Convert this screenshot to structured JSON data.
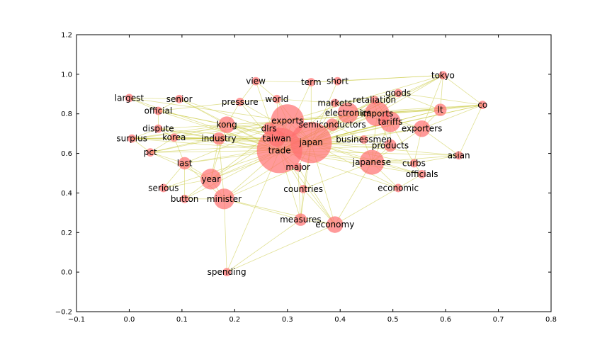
{
  "chart_data": {
    "type": "scatter",
    "subtype": "network-graph",
    "title": "",
    "xlabel": "",
    "ylabel": "",
    "xlim": [
      -0.1,
      0.8
    ],
    "ylim": [
      -0.2,
      1.2
    ],
    "xticks": [
      "-0.1",
      "0.0",
      "0.1",
      "0.2",
      "0.3",
      "0.4",
      "0.5",
      "0.6",
      "0.7",
      "0.8"
    ],
    "yticks": [
      "-0.2",
      "0.0",
      "0.2",
      "0.4",
      "0.6",
      "0.8",
      "1.0",
      "1.2"
    ],
    "grid": false,
    "node_color": "#ff6f6f",
    "edge_color": "#c8c83c",
    "nodes": [
      {
        "label": "trade",
        "x": 0.285,
        "y": 0.615,
        "weight": 10
      },
      {
        "label": "japan",
        "x": 0.345,
        "y": 0.655,
        "weight": 9
      },
      {
        "label": "exports",
        "x": 0.3,
        "y": 0.765,
        "weight": 7
      },
      {
        "label": "imports",
        "x": 0.47,
        "y": 0.8,
        "weight": 5
      },
      {
        "label": "japanese",
        "x": 0.46,
        "y": 0.555,
        "weight": 5
      },
      {
        "label": "electronics",
        "x": 0.415,
        "y": 0.805,
        "weight": 4
      },
      {
        "label": "tariffs",
        "x": 0.495,
        "y": 0.76,
        "weight": 4
      },
      {
        "label": "minister",
        "x": 0.18,
        "y": 0.37,
        "weight": 4
      },
      {
        "label": "year",
        "x": 0.155,
        "y": 0.47,
        "weight": 4
      },
      {
        "label": "kong",
        "x": 0.185,
        "y": 0.745,
        "weight": 3
      },
      {
        "label": "taiwan",
        "x": 0.28,
        "y": 0.675,
        "weight": 3
      },
      {
        "label": "exporters",
        "x": 0.555,
        "y": 0.725,
        "weight": 3
      },
      {
        "label": "economy",
        "x": 0.39,
        "y": 0.24,
        "weight": 3
      },
      {
        "label": "industry",
        "x": 0.17,
        "y": 0.675,
        "weight": 2
      },
      {
        "label": "dlrs",
        "x": 0.265,
        "y": 0.725,
        "weight": 2
      },
      {
        "label": "semiconductors",
        "x": 0.385,
        "y": 0.745,
        "weight": 2
      },
      {
        "label": "lt",
        "x": 0.59,
        "y": 0.82,
        "weight": 2
      },
      {
        "label": "products",
        "x": 0.495,
        "y": 0.64,
        "weight": 2
      },
      {
        "label": "measures",
        "x": 0.325,
        "y": 0.265,
        "weight": 2
      },
      {
        "label": "businessmen",
        "x": 0.445,
        "y": 0.67,
        "weight": 1
      },
      {
        "label": "retaliation",
        "x": 0.465,
        "y": 0.87,
        "weight": 1
      },
      {
        "label": "markets",
        "x": 0.39,
        "y": 0.855,
        "weight": 1
      },
      {
        "label": "goods",
        "x": 0.51,
        "y": 0.905,
        "weight": 1
      },
      {
        "label": "tokyo",
        "x": 0.595,
        "y": 0.995,
        "weight": 1
      },
      {
        "label": "co",
        "x": 0.67,
        "y": 0.845,
        "weight": 1
      },
      {
        "label": "term",
        "x": 0.345,
        "y": 0.96,
        "weight": 1
      },
      {
        "label": "short",
        "x": 0.395,
        "y": 0.965,
        "weight": 1
      },
      {
        "label": "view",
        "x": 0.24,
        "y": 0.965,
        "weight": 1
      },
      {
        "label": "world",
        "x": 0.28,
        "y": 0.875,
        "weight": 1
      },
      {
        "label": "pressure",
        "x": 0.21,
        "y": 0.86,
        "weight": 1
      },
      {
        "label": "largest",
        "x": 0.0,
        "y": 0.88,
        "weight": 1
      },
      {
        "label": "senior",
        "x": 0.095,
        "y": 0.875,
        "weight": 1
      },
      {
        "label": "official",
        "x": 0.055,
        "y": 0.815,
        "weight": 1
      },
      {
        "label": "dispute",
        "x": 0.055,
        "y": 0.725,
        "weight": 1
      },
      {
        "label": "korea",
        "x": 0.085,
        "y": 0.68,
        "weight": 1
      },
      {
        "label": "surplus",
        "x": 0.005,
        "y": 0.675,
        "weight": 1
      },
      {
        "label": "pct",
        "x": 0.04,
        "y": 0.605,
        "weight": 1
      },
      {
        "label": "last",
        "x": 0.105,
        "y": 0.55,
        "weight": 2
      },
      {
        "label": "major",
        "x": 0.32,
        "y": 0.53,
        "weight": 1
      },
      {
        "label": "curbs",
        "x": 0.54,
        "y": 0.55,
        "weight": 1
      },
      {
        "label": "asian",
        "x": 0.625,
        "y": 0.59,
        "weight": 1
      },
      {
        "label": "officials",
        "x": 0.555,
        "y": 0.495,
        "weight": 1
      },
      {
        "label": "economic",
        "x": 0.51,
        "y": 0.425,
        "weight": 1
      },
      {
        "label": "countries",
        "x": 0.33,
        "y": 0.42,
        "weight": 1
      },
      {
        "label": "serious",
        "x": 0.065,
        "y": 0.425,
        "weight": 1
      },
      {
        "label": "button",
        "x": 0.105,
        "y": 0.37,
        "weight": 1
      },
      {
        "label": "spending",
        "x": 0.185,
        "y": 0.0,
        "weight": 1
      }
    ],
    "edges": [
      [
        "trade",
        "japan"
      ],
      [
        "trade",
        "exports"
      ],
      [
        "trade",
        "imports"
      ],
      [
        "trade",
        "japanese"
      ],
      [
        "trade",
        "electronics"
      ],
      [
        "trade",
        "tariffs"
      ],
      [
        "trade",
        "minister"
      ],
      [
        "trade",
        "year"
      ],
      [
        "trade",
        "kong"
      ],
      [
        "trade",
        "taiwan"
      ],
      [
        "trade",
        "exporters"
      ],
      [
        "trade",
        "economy"
      ],
      [
        "trade",
        "industry"
      ],
      [
        "trade",
        "dlrs"
      ],
      [
        "trade",
        "semiconductors"
      ],
      [
        "trade",
        "lt"
      ],
      [
        "trade",
        "products"
      ],
      [
        "trade",
        "measures"
      ],
      [
        "trade",
        "businessmen"
      ],
      [
        "trade",
        "retaliation"
      ],
      [
        "trade",
        "markets"
      ],
      [
        "trade",
        "goods"
      ],
      [
        "trade",
        "tokyo"
      ],
      [
        "trade",
        "co"
      ],
      [
        "trade",
        "term"
      ],
      [
        "trade",
        "view"
      ],
      [
        "trade",
        "world"
      ],
      [
        "trade",
        "pressure"
      ],
      [
        "trade",
        "largest"
      ],
      [
        "trade",
        "senior"
      ],
      [
        "trade",
        "official"
      ],
      [
        "trade",
        "dispute"
      ],
      [
        "trade",
        "korea"
      ],
      [
        "trade",
        "surplus"
      ],
      [
        "trade",
        "pct"
      ],
      [
        "trade",
        "last"
      ],
      [
        "trade",
        "major"
      ],
      [
        "trade",
        "curbs"
      ],
      [
        "trade",
        "asian"
      ],
      [
        "trade",
        "officials"
      ],
      [
        "trade",
        "economic"
      ],
      [
        "trade",
        "countries"
      ],
      [
        "trade",
        "serious"
      ],
      [
        "trade",
        "button"
      ],
      [
        "trade",
        "spending"
      ],
      [
        "japan",
        "exports"
      ],
      [
        "japan",
        "imports"
      ],
      [
        "japan",
        "japanese"
      ],
      [
        "japan",
        "electronics"
      ],
      [
        "japan",
        "tariffs"
      ],
      [
        "japan",
        "minister"
      ],
      [
        "japan",
        "year"
      ],
      [
        "japan",
        "kong"
      ],
      [
        "japan",
        "taiwan"
      ],
      [
        "japan",
        "exporters"
      ],
      [
        "japan",
        "economy"
      ],
      [
        "japan",
        "industry"
      ],
      [
        "japan",
        "dlrs"
      ],
      [
        "japan",
        "semiconductors"
      ],
      [
        "japan",
        "lt"
      ],
      [
        "japan",
        "products"
      ],
      [
        "japan",
        "measures"
      ],
      [
        "japan",
        "businessmen"
      ],
      [
        "japan",
        "retaliation"
      ],
      [
        "japan",
        "markets"
      ],
      [
        "japan",
        "goods"
      ],
      [
        "japan",
        "tokyo"
      ],
      [
        "japan",
        "co"
      ],
      [
        "japan",
        "short"
      ],
      [
        "japan",
        "term"
      ],
      [
        "japan",
        "world"
      ],
      [
        "japan",
        "pressure"
      ],
      [
        "japan",
        "senior"
      ],
      [
        "japan",
        "official"
      ],
      [
        "japan",
        "dispute"
      ],
      [
        "japan",
        "korea"
      ],
      [
        "japan",
        "surplus"
      ],
      [
        "japan",
        "pct"
      ],
      [
        "japan",
        "last"
      ],
      [
        "japan",
        "major"
      ],
      [
        "japan",
        "curbs"
      ],
      [
        "japan",
        "asian"
      ],
      [
        "japan",
        "officials"
      ],
      [
        "japan",
        "economic"
      ],
      [
        "japan",
        "countries"
      ],
      [
        "exports",
        "kong"
      ],
      [
        "exports",
        "taiwan"
      ],
      [
        "exports",
        "industry"
      ],
      [
        "exports",
        "dlrs"
      ],
      [
        "exports",
        "year"
      ],
      [
        "exports",
        "korea"
      ],
      [
        "exports",
        "surplus"
      ],
      [
        "exports",
        "pct"
      ],
      [
        "exports",
        "last"
      ],
      [
        "exports",
        "electronics"
      ],
      [
        "exports",
        "imports"
      ],
      [
        "exports",
        "co"
      ],
      [
        "exports",
        "lt"
      ],
      [
        "exports",
        "world"
      ],
      [
        "exports",
        "largest"
      ],
      [
        "exports",
        "tokyo"
      ],
      [
        "imports",
        "electronics"
      ],
      [
        "imports",
        "tariffs"
      ],
      [
        "imports",
        "lt"
      ],
      [
        "imports",
        "co"
      ],
      [
        "imports",
        "goods"
      ],
      [
        "imports",
        "products"
      ],
      [
        "imports",
        "japanese"
      ],
      [
        "imports",
        "semiconductors"
      ],
      [
        "imports",
        "exporters"
      ],
      [
        "imports",
        "retaliation"
      ],
      [
        "imports",
        "markets"
      ],
      [
        "imports",
        "tokyo"
      ],
      [
        "japanese",
        "tariffs"
      ],
      [
        "japanese",
        "products"
      ],
      [
        "japanese",
        "exporters"
      ],
      [
        "japanese",
        "curbs"
      ],
      [
        "japanese",
        "officials"
      ],
      [
        "japanese",
        "asian"
      ],
      [
        "japanese",
        "economic"
      ],
      [
        "japanese",
        "economy"
      ],
      [
        "japanese",
        "businessmen"
      ],
      [
        "japanese",
        "countries"
      ],
      [
        "electronics",
        "tariffs"
      ],
      [
        "electronics",
        "semiconductors"
      ],
      [
        "electronics",
        "goods"
      ],
      [
        "electronics",
        "co"
      ],
      [
        "electronics",
        "lt"
      ],
      [
        "tariffs",
        "exporters"
      ],
      [
        "tariffs",
        "products"
      ],
      [
        "tariffs",
        "curbs"
      ],
      [
        "tariffs",
        "retaliation"
      ],
      [
        "minister",
        "year"
      ],
      [
        "minister",
        "spending"
      ],
      [
        "minister",
        "measures"
      ],
      [
        "minister",
        "economy"
      ],
      [
        "minister",
        "button"
      ],
      [
        "minister",
        "industry"
      ],
      [
        "minister",
        "last"
      ],
      [
        "minister",
        "major"
      ],
      [
        "year",
        "last"
      ],
      [
        "year",
        "pct"
      ],
      [
        "year",
        "serious"
      ],
      [
        "year",
        "button"
      ],
      [
        "year",
        "kong"
      ],
      [
        "year",
        "taiwan"
      ],
      [
        "year",
        "industry"
      ],
      [
        "kong",
        "taiwan"
      ],
      [
        "kong",
        "korea"
      ],
      [
        "kong",
        "dlrs"
      ],
      [
        "kong",
        "pressure"
      ],
      [
        "kong",
        "surplus"
      ],
      [
        "kong",
        "dispute"
      ],
      [
        "kong",
        "official"
      ],
      [
        "kong",
        "senior"
      ],
      [
        "taiwan",
        "korea"
      ],
      [
        "taiwan",
        "surplus"
      ],
      [
        "taiwan",
        "dlrs"
      ],
      [
        "taiwan",
        "semiconductors"
      ],
      [
        "exporters",
        "lt"
      ],
      [
        "exporters",
        "co"
      ],
      [
        "exporters",
        "asian"
      ],
      [
        "exporters",
        "curbs"
      ],
      [
        "exporters",
        "tokyo"
      ],
      [
        "economy",
        "measures"
      ],
      [
        "economy",
        "economic"
      ],
      [
        "economy",
        "countries"
      ],
      [
        "economy",
        "spending"
      ],
      [
        "economy",
        "major"
      ],
      [
        "industry",
        "korea"
      ],
      [
        "industry",
        "surplus"
      ],
      [
        "industry",
        "pct"
      ],
      [
        "industry",
        "dispute"
      ],
      [
        "lt",
        "co"
      ],
      [
        "lt",
        "tokyo"
      ],
      [
        "lt",
        "goods"
      ],
      [
        "co",
        "tokyo"
      ],
      [
        "co",
        "goods"
      ],
      [
        "co",
        "asian"
      ],
      [
        "term",
        "short"
      ],
      [
        "term",
        "view"
      ],
      [
        "term",
        "tokyo"
      ],
      [
        "short",
        "tokyo"
      ],
      [
        "view",
        "world"
      ],
      [
        "view",
        "pressure"
      ],
      [
        "largest",
        "senior"
      ],
      [
        "largest",
        "official"
      ],
      [
        "official",
        "senior"
      ],
      [
        "official",
        "dispute"
      ],
      [
        "official",
        "pressure"
      ],
      [
        "dispute",
        "korea"
      ],
      [
        "dispute",
        "surplus"
      ],
      [
        "surplus",
        "pct"
      ],
      [
        "surplus",
        "korea"
      ],
      [
        "pct",
        "last"
      ],
      [
        "pct",
        "korea"
      ],
      [
        "last",
        "serious"
      ],
      [
        "last",
        "button"
      ],
      [
        "last",
        "korea"
      ],
      [
        "measures",
        "countries"
      ],
      [
        "measures",
        "major"
      ],
      [
        "measures",
        "spending"
      ],
      [
        "curbs",
        "asian"
      ],
      [
        "curbs",
        "officials"
      ],
      [
        "officials",
        "economic"
      ],
      [
        "markets",
        "retaliation"
      ],
      [
        "markets",
        "goods"
      ],
      [
        "semiconductors",
        "businessmen"
      ],
      [
        "businessmen",
        "products"
      ],
      [
        "world",
        "pressure"
      ],
      [
        "world",
        "markets"
      ]
    ]
  }
}
